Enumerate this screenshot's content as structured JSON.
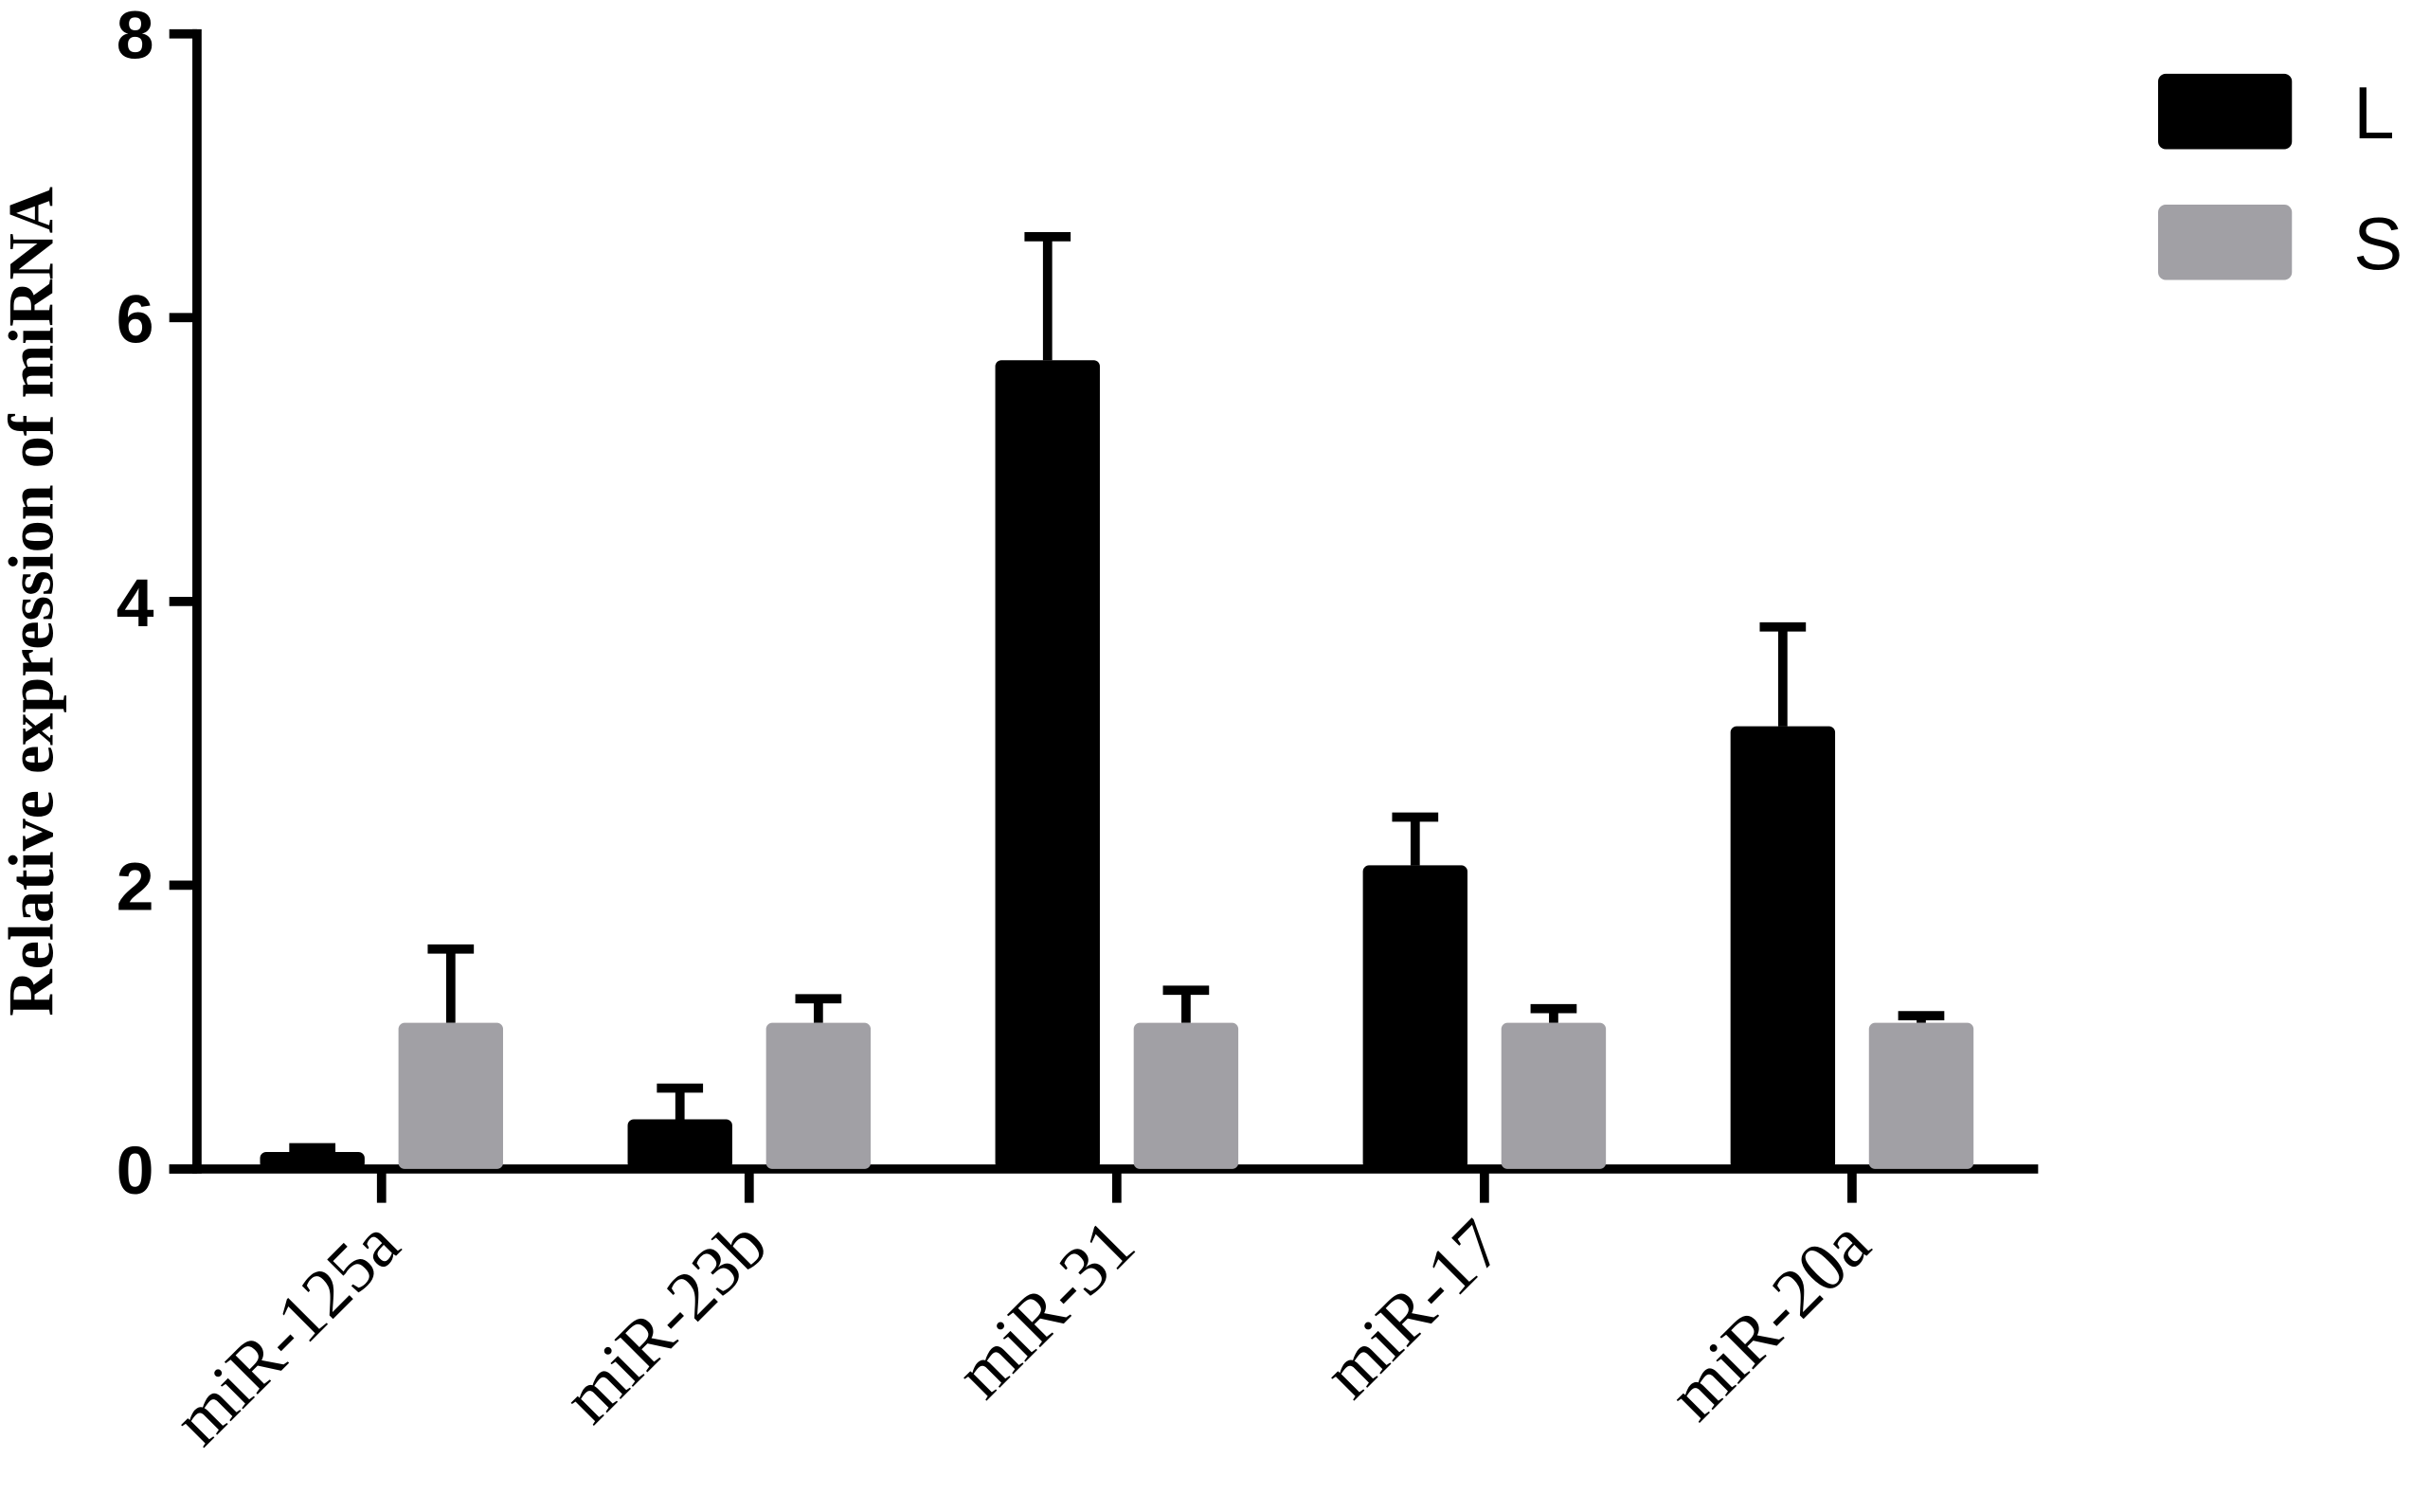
{
  "chart_data": {
    "type": "bar",
    "y_label": "Relative expression of miRNA",
    "categories": [
      "miR-125a",
      "miR-23b",
      "miR-31",
      "miR-17",
      "miR-20a"
    ],
    "series": [
      {
        "name": "L",
        "color": "#000000",
        "values": [
          0.12,
          0.35,
          5.7,
          2.14,
          3.12
        ],
        "errors": [
          0.03,
          0.22,
          0.87,
          0.34,
          0.7
        ]
      },
      {
        "name": "S",
        "color": "#a1a0a5",
        "values": [
          1.03,
          1.03,
          1.03,
          1.03,
          1.03
        ],
        "errors": [
          0.52,
          0.17,
          0.23,
          0.1,
          0.05
        ]
      }
    ],
    "ylim": [
      0,
      8
    ],
    "yticks": [
      0,
      2,
      4,
      6,
      8
    ],
    "grid": false,
    "legend": "top-right"
  }
}
